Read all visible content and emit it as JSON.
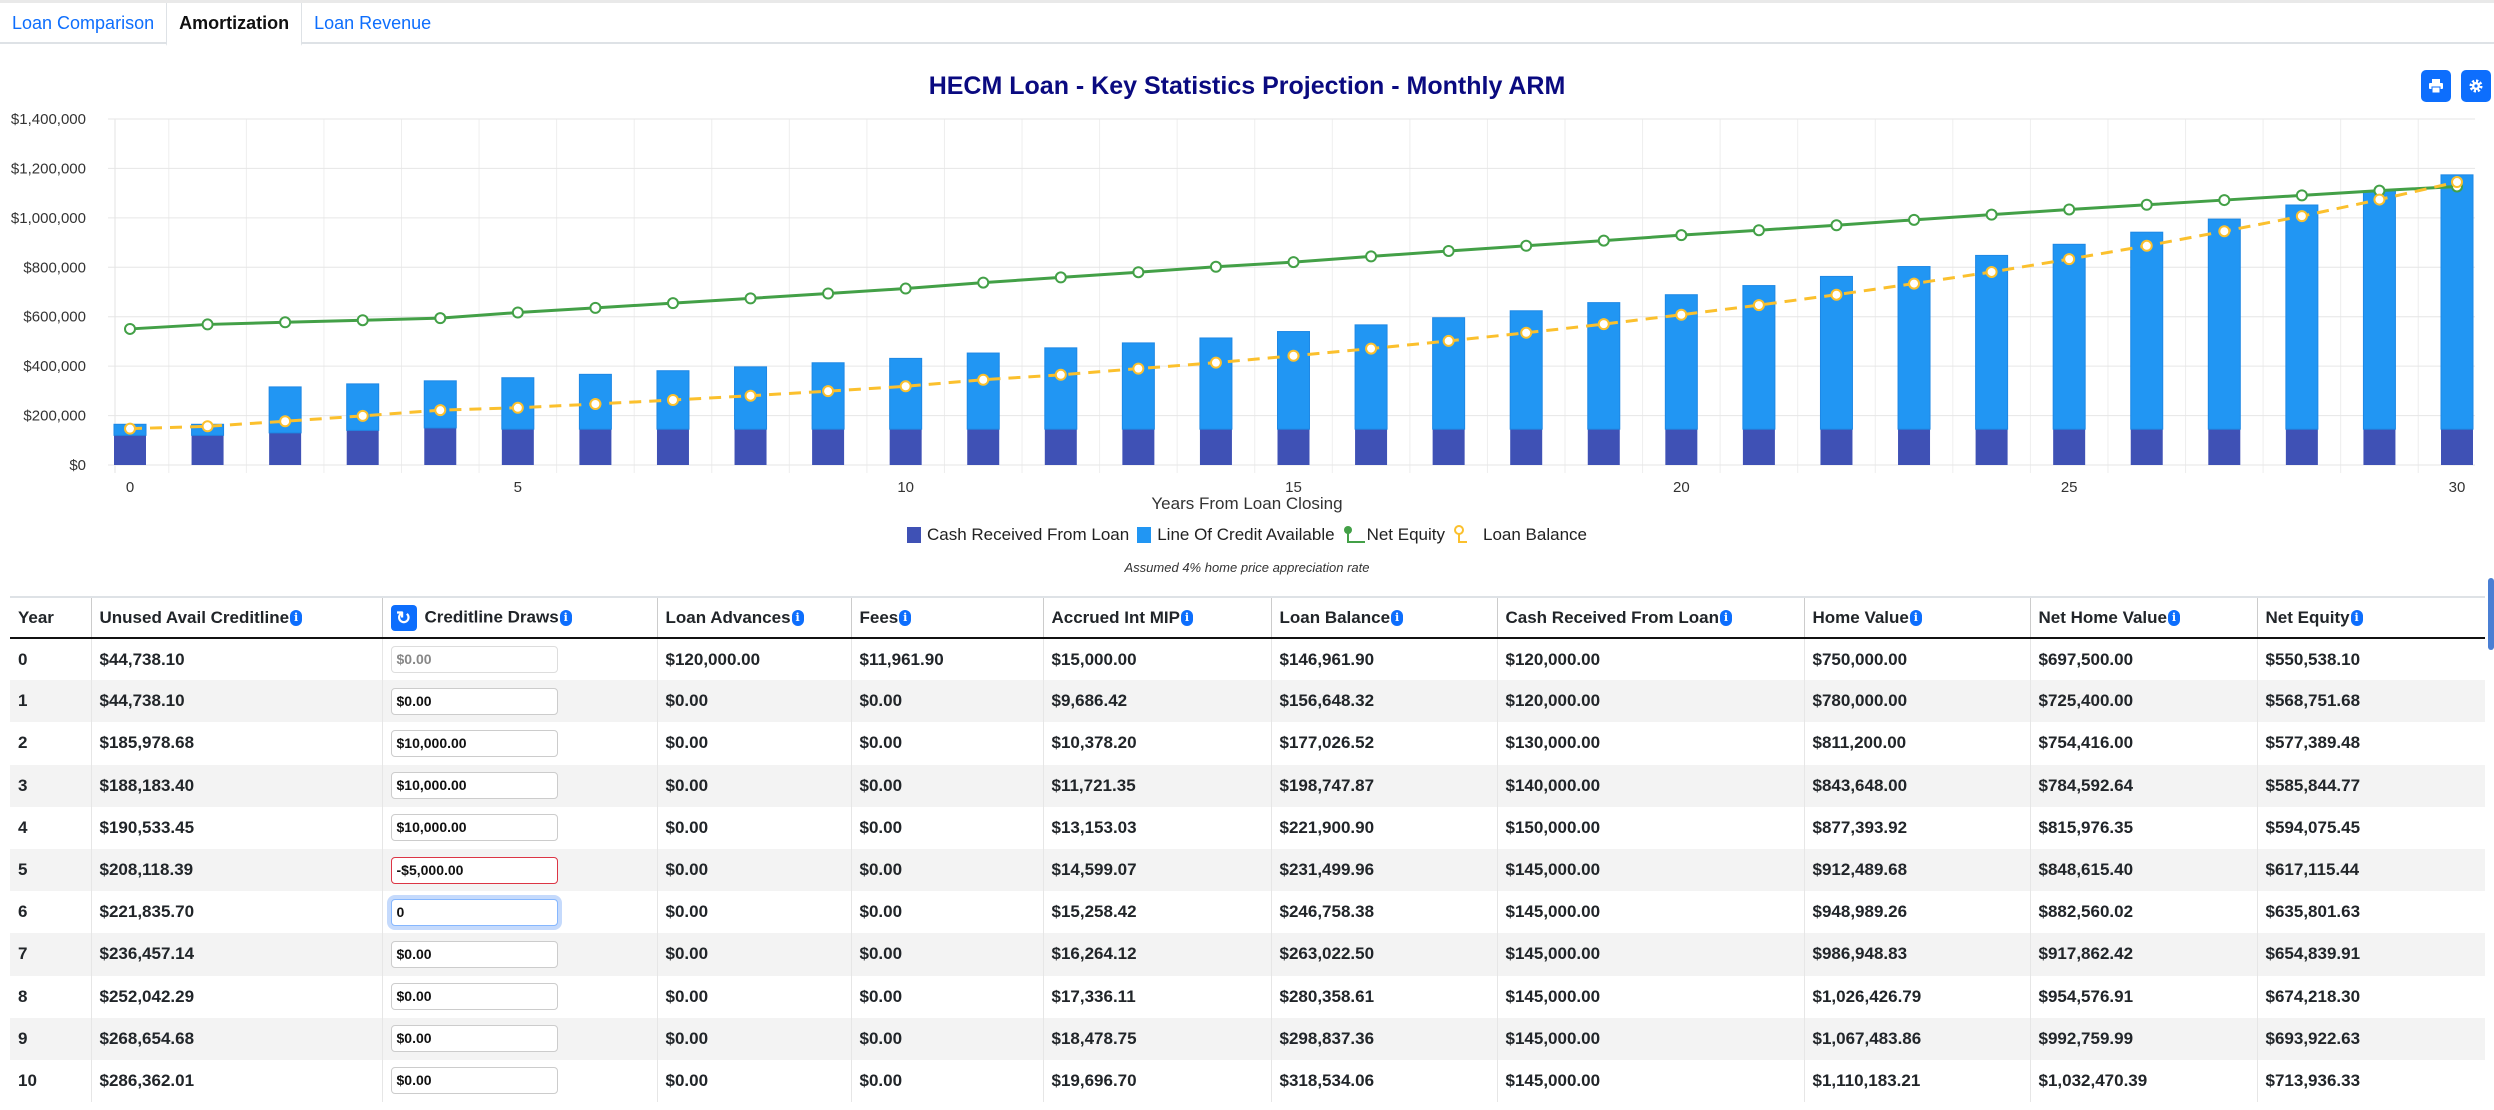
{
  "tabs": [
    {
      "label": "Loan Comparison",
      "active": false
    },
    {
      "label": "Amortization",
      "active": true
    },
    {
      "label": "Loan Revenue",
      "active": false
    }
  ],
  "chart_title": "HECM Loan - Key Statistics Projection - Monthly ARM",
  "toolbar": {
    "print_icon": "printer-icon",
    "settings_icon": "gear-icon"
  },
  "colors": {
    "cash": "#3f51b5",
    "credit": "#2196f3",
    "equity": "#43a047",
    "balance": "#fbc02d",
    "title": "#0a0a80",
    "accent": "#0d6efd"
  },
  "chart_data": {
    "type": "bar",
    "xlabel": "Years From Loan Closing",
    "xlim": [
      0,
      30
    ],
    "x_ticks": [
      0,
      5,
      10,
      15,
      20,
      25,
      30
    ],
    "ylim": [
      0,
      1400000
    ],
    "y_ticks": [
      {
        "v": 0,
        "label": "$0"
      },
      {
        "v": 200000,
        "label": "$200,000"
      },
      {
        "v": 400000,
        "label": "$400,000"
      },
      {
        "v": 600000,
        "label": "$600,000"
      },
      {
        "v": 800000,
        "label": "$800,000"
      },
      {
        "v": 1000000,
        "label": "$1,000,000"
      },
      {
        "v": 1200000,
        "label": "$1,200,000"
      },
      {
        "v": 1400000,
        "label": "$1,400,000"
      }
    ],
    "grid": true,
    "legend_position": "bottom",
    "x": [
      0,
      1,
      2,
      3,
      4,
      5,
      6,
      7,
      8,
      9,
      10,
      11,
      12,
      13,
      14,
      15,
      16,
      17,
      18,
      19,
      20,
      21,
      22,
      23,
      24,
      25,
      26,
      27,
      28,
      29,
      30
    ],
    "series": [
      {
        "name": "Cash Received From Loan",
        "type": "bar",
        "stack": "a",
        "values": [
          120000,
          120000,
          130000,
          140000,
          150000,
          145000,
          145000,
          145000,
          145000,
          145000,
          145000,
          145000,
          145000,
          145000,
          145000,
          145000,
          145000,
          145000,
          145000,
          145000,
          145000,
          145000,
          145000,
          145000,
          145000,
          145000,
          145000,
          145000,
          145000,
          145000,
          145000
        ]
      },
      {
        "name": "Line Of Credit Available",
        "type": "bar",
        "stack": "a",
        "values": [
          44738,
          44738,
          185979,
          188183,
          190533,
          208118,
          221836,
          236457,
          252042,
          268655,
          286362,
          308000,
          329000,
          349000,
          369000,
          395000,
          422000,
          451000,
          479000,
          512000,
          544000,
          581000,
          618000,
          658000,
          703000,
          748000,
          797000,
          850000,
          907000,
          964000,
          1029000
        ]
      },
      {
        "name": "Net Equity",
        "type": "line",
        "values": [
          550538,
          568752,
          577389,
          585845,
          594075,
          617115,
          635802,
          654840,
          674218,
          693923,
          713936,
          738000,
          759000,
          780000,
          802000,
          821000,
          844000,
          866000,
          887000,
          908000,
          930000,
          950000,
          970000,
          992000,
          1013000,
          1034000,
          1053000,
          1072000,
          1091000,
          1110000,
          1127000
        ]
      },
      {
        "name": "Loan Balance",
        "type": "line",
        "dashed": true,
        "values": [
          146962,
          156648,
          177027,
          198748,
          221901,
          231500,
          246758,
          263023,
          280359,
          298837,
          318534,
          345000,
          365000,
          390000,
          414000,
          442000,
          471000,
          502000,
          535000,
          570000,
          608000,
          647000,
          689000,
          734000,
          781000,
          833000,
          887000,
          946000,
          1007000,
          1074000,
          1145000
        ]
      }
    ],
    "note": "Assumed 4% home price appreciation rate"
  },
  "table": {
    "columns": [
      "Year",
      "Unused Avail Creditline",
      "Creditline Draws",
      "Loan Advances",
      "Fees",
      "Accrued Int MIP",
      "Loan Balance",
      "Cash Received From Loan",
      "Home Value",
      "Net Home Value",
      "Net Equity"
    ],
    "rows": [
      [
        "0",
        "$44,738.10",
        "$0.00",
        "$120,000.00",
        "$11,961.90",
        "$15,000.00",
        "$146,961.90",
        "$120,000.00",
        "$750,000.00",
        "$697,500.00",
        "$550,538.10"
      ],
      [
        "1",
        "$44,738.10",
        "$0.00",
        "$0.00",
        "$0.00",
        "$9,686.42",
        "$156,648.32",
        "$120,000.00",
        "$780,000.00",
        "$725,400.00",
        "$568,751.68"
      ],
      [
        "2",
        "$185,978.68",
        "$10,000.00",
        "$0.00",
        "$0.00",
        "$10,378.20",
        "$177,026.52",
        "$130,000.00",
        "$811,200.00",
        "$754,416.00",
        "$577,389.48"
      ],
      [
        "3",
        "$188,183.40",
        "$10,000.00",
        "$0.00",
        "$0.00",
        "$11,721.35",
        "$198,747.87",
        "$140,000.00",
        "$843,648.00",
        "$784,592.64",
        "$585,844.77"
      ],
      [
        "4",
        "$190,533.45",
        "$10,000.00",
        "$0.00",
        "$0.00",
        "$13,153.03",
        "$221,900.90",
        "$150,000.00",
        "$877,393.92",
        "$815,976.35",
        "$594,075.45"
      ],
      [
        "5",
        "$208,118.39",
        "-$5,000.00",
        "$0.00",
        "$0.00",
        "$14,599.07",
        "$231,499.96",
        "$145,000.00",
        "$912,489.68",
        "$848,615.40",
        "$617,115.44"
      ],
      [
        "6",
        "$221,835.70",
        "0",
        "$0.00",
        "$0.00",
        "$15,258.42",
        "$246,758.38",
        "$145,000.00",
        "$948,989.26",
        "$882,560.02",
        "$635,801.63"
      ],
      [
        "7",
        "$236,457.14",
        "$0.00",
        "$0.00",
        "$0.00",
        "$16,264.12",
        "$263,022.50",
        "$145,000.00",
        "$986,948.83",
        "$917,862.42",
        "$654,839.91"
      ],
      [
        "8",
        "$252,042.29",
        "$0.00",
        "$0.00",
        "$0.00",
        "$17,336.11",
        "$280,358.61",
        "$145,000.00",
        "$1,026,426.79",
        "$954,576.91",
        "$674,218.30"
      ],
      [
        "9",
        "$268,654.68",
        "$0.00",
        "$0.00",
        "$0.00",
        "$18,478.75",
        "$298,837.36",
        "$145,000.00",
        "$1,067,483.86",
        "$992,759.99",
        "$693,922.63"
      ],
      [
        "10",
        "$286,362.01",
        "$0.00",
        "$0.00",
        "$0.00",
        "$19,696.70",
        "$318,534.06",
        "$145,000.00",
        "$1,110,183.21",
        "$1,032,470.39",
        "$713,936.33"
      ]
    ],
    "input_states": [
      "disabled",
      "",
      "",
      "",
      "",
      "invalid",
      "focus",
      "",
      "",
      "",
      ""
    ]
  }
}
